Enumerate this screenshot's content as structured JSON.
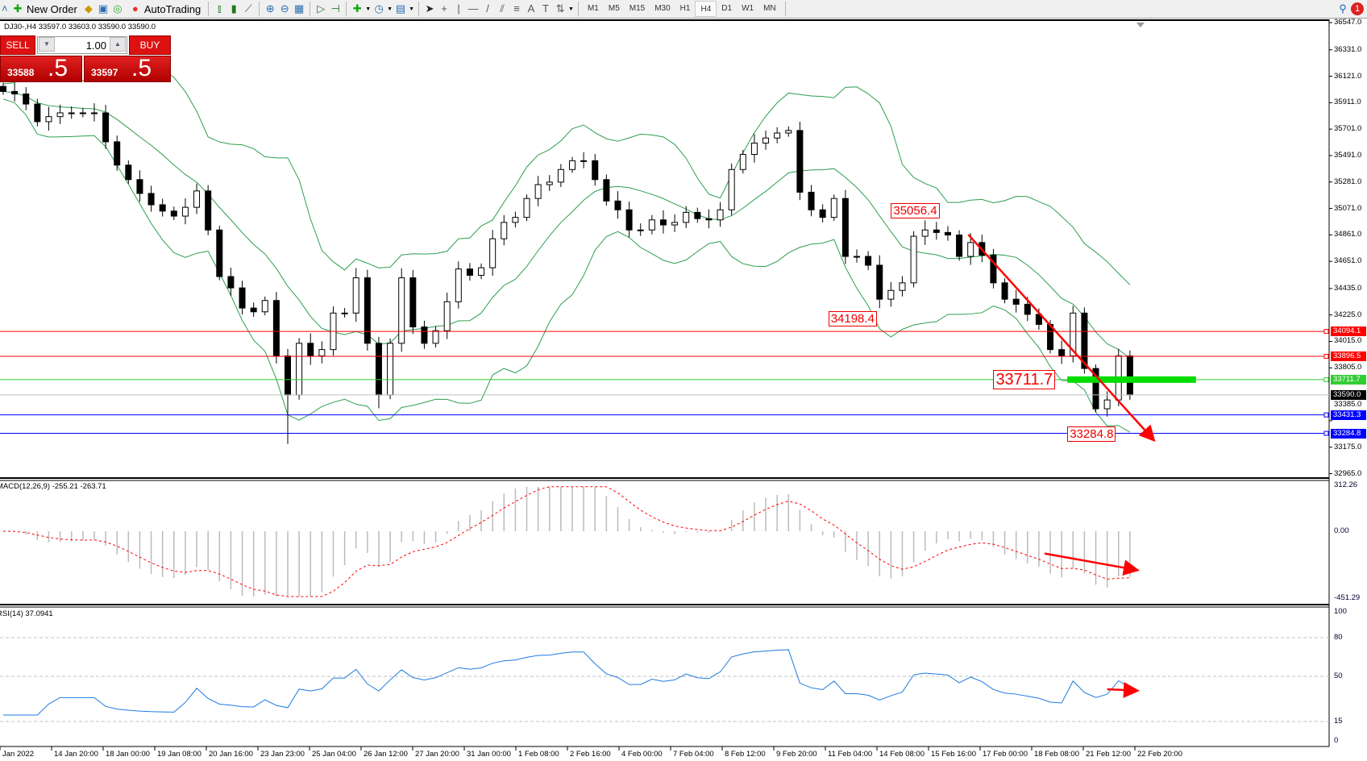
{
  "toolbar": {
    "new_order": "New Order",
    "autotrading": "AutoTrading",
    "timeframes": [
      "M1",
      "M5",
      "M15",
      "M30",
      "H1",
      "H4",
      "D1",
      "W1",
      "MN"
    ],
    "active_timeframe": "H4",
    "notification_count": "1"
  },
  "chart_header": "DJ30-,H4  33597.0 33603.0 33590.0 33590.0",
  "trade_panel": {
    "sell": "SELL",
    "buy": "BUY",
    "lot": "1.00",
    "bid_main": "33588",
    "bid_frac": ".5",
    "ask_main": "33597",
    "ask_frac": ".5",
    "color": "#d11111"
  },
  "chart_data": {
    "type": "candlestick",
    "symbol": "DJ30-",
    "timeframe": "H4",
    "close": [
      36000,
      35980,
      35900,
      35760,
      35800,
      35830,
      35830,
      35830,
      35830,
      35600,
      35415,
      35300,
      35190,
      35100,
      35050,
      35010,
      35080,
      35210,
      34900,
      34530,
      34440,
      34280,
      34250,
      34340,
      33900,
      33590,
      34000,
      33900,
      33950,
      34240,
      34240,
      34520,
      34000,
      33590,
      34000,
      34520,
      34130,
      34000,
      34100,
      34330,
      34590,
      34540,
      34600,
      34830,
      34960,
      35000,
      35150,
      35260,
      35280,
      35380,
      35450,
      35450,
      35300,
      35130,
      35060,
      34900,
      34900,
      34980,
      34940,
      34960,
      35040,
      34990,
      34980,
      35060,
      35380,
      35500,
      35590,
      35630,
      35670,
      35690,
      35200,
      35060,
      35000,
      35150,
      34690,
      34690,
      34620,
      34350,
      34420,
      34480,
      34850,
      34900,
      34880,
      34860,
      34690,
      34800,
      34700,
      34480,
      34350,
      34310,
      34230,
      34150,
      33950,
      33900,
      34240,
      33800,
      33480,
      33550,
      33900,
      33590
    ],
    "price_axis": [
      "36547.0",
      "36331.0",
      "36121.0",
      "35911.0",
      "35701.0",
      "35491.0",
      "35281.0",
      "35071.0",
      "34861.0",
      "34651.0",
      "34435.0",
      "34225.0",
      "34015.0",
      "33805.0",
      "33385.0",
      "33175.0",
      "32965.0"
    ],
    "ylim": [
      32965,
      36547
    ],
    "time_axis": [
      "Jan 2022",
      "14 Jan 20:00",
      "18 Jan 00:00",
      "19 Jan 08:00",
      "20 Jan 16:00",
      "23 Jan 23:00",
      "25 Jan 04:00",
      "26 Jan 12:00",
      "27 Jan 20:00",
      "31 Jan 00:00",
      "1 Feb 08:00",
      "2 Feb 16:00",
      "4 Feb 00:00",
      "7 Feb 04:00",
      "8 Feb 12:00",
      "9 Feb 20:00",
      "11 Feb 04:00",
      "14 Feb 08:00",
      "15 Feb 16:00",
      "17 Feb 00:00",
      "18 Feb 08:00",
      "21 Feb 12:00",
      "22 Feb 20:00"
    ],
    "bollinger_color": "#2e9e4e",
    "hlines": [
      {
        "price": 34094.1,
        "label": "34094.1",
        "color": "#ff0000"
      },
      {
        "price": 33896.5,
        "label": "33896.5",
        "color": "#ff0000"
      },
      {
        "price": 33711.7,
        "label": "33711.7",
        "color": "#33cc33"
      },
      {
        "price": 33590.0,
        "label": "33590.0",
        "color": "#000000",
        "line": "#c0c0c0"
      },
      {
        "price": 33431.3,
        "label": "33431.3",
        "color": "#0000ff"
      },
      {
        "price": 33284.8,
        "label": "33284.8",
        "color": "#0000ff"
      }
    ],
    "annotations": [
      {
        "text": "35056.4",
        "bar": 78,
        "price": 35056.4
      },
      {
        "text": "34198.4",
        "bar": 72.5,
        "price": 34198.4
      },
      {
        "text": "33711.7",
        "bar": 87,
        "price": 33711.7,
        "big": true
      },
      {
        "text": "33284.8",
        "bar": 93.5,
        "price": 33284.8
      }
    ],
    "trendline": {
      "from": {
        "bar": 84.8,
        "price": 34863
      },
      "to": {
        "bar": 101,
        "price": 33241
      },
      "color": "#ff0000"
    },
    "support_zone": {
      "from_bar": 93.5,
      "to_bar": 104.8,
      "price": 33711.7,
      "color": "#00dd00"
    },
    "macd": {
      "label": "MACD(12,26,9) -255.21 -263.71",
      "axis": [
        "312.26",
        "0.00",
        "-451.29"
      ],
      "range": [
        -451.29,
        312.26
      ],
      "signal_color": "#ff0000",
      "arrow": {
        "from": {
          "bar": 91.5,
          "value": -150
        },
        "to": {
          "bar": 99.5,
          "value": -260
        }
      }
    },
    "rsi": {
      "label": "RSI(14) 37.0941",
      "axis": [
        "100",
        "80",
        "50",
        "15",
        "0"
      ],
      "levels": [
        80,
        50,
        15
      ],
      "color": "#1e7be0",
      "arrow": {
        "from": {
          "bar": 97,
          "value": 40
        },
        "to": {
          "bar": 99.5,
          "value": 39
        }
      }
    }
  }
}
